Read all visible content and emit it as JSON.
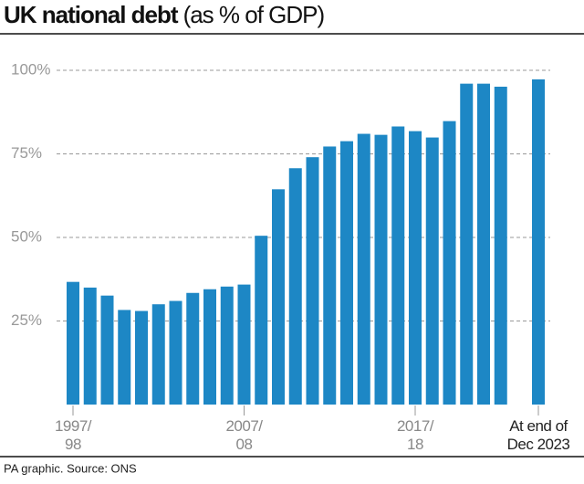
{
  "chart_data": {
    "type": "bar",
    "title": "UK national debt",
    "subtitle": "(as % of GDP)",
    "source": "PA graphic. Source: ONS",
    "categories": [
      "1997/\n98",
      null,
      null,
      null,
      null,
      null,
      null,
      null,
      null,
      null,
      "2007/\n08",
      null,
      null,
      null,
      null,
      null,
      null,
      null,
      null,
      null,
      "2017/\n18",
      null,
      null,
      null,
      null,
      null,
      "At end of\nDec 2023"
    ],
    "values": [
      36.7,
      35,
      32.6,
      28.3,
      28,
      30,
      31,
      33.4,
      34.5,
      35.3,
      35.9,
      50.5,
      64.4,
      70.7,
      74,
      77.2,
      78.8,
      81,
      80.7,
      83.2,
      81.8,
      79.9,
      84.8,
      96,
      96,
      95.1,
      97.3
    ],
    "color": "#1d87c5",
    "ylim": [
      0,
      100
    ],
    "yticks": [
      {
        "value": 25,
        "label": "25%"
      },
      {
        "value": 50,
        "label": "50%"
      },
      {
        "value": 75,
        "label": "75%"
      },
      {
        "value": 100,
        "label": "100%"
      }
    ],
    "grid": true
  }
}
